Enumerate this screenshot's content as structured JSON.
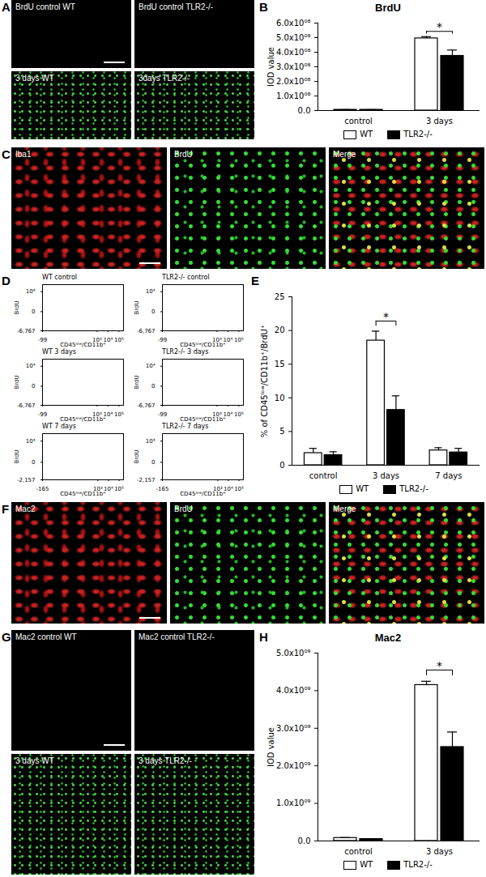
{
  "chart_data": [
    {
      "panel": "B",
      "type": "bar",
      "title": "BrdU",
      "y_label": "IOD value",
      "categories": [
        "control",
        "3 days"
      ],
      "series": [
        {
          "name": "WT",
          "color": "#ffffff",
          "values": [
            5000000,
            495000000
          ],
          "errors": [
            1000000,
            12000000
          ]
        },
        {
          "name": "TLR2-/-",
          "color": "#000000",
          "values": [
            5000000,
            375000000
          ],
          "errors": [
            1000000,
            40000000
          ]
        }
      ],
      "ylim": [
        0,
        600000000
      ],
      "yticks": [
        {
          "value": 0,
          "label": "0.0"
        },
        {
          "value": 100000000,
          "label": "1.0x10⁰⁸"
        },
        {
          "value": 200000000,
          "label": "2.0x10⁰⁸"
        },
        {
          "value": 300000000,
          "label": "3.0x10⁰⁸"
        },
        {
          "value": 400000000,
          "label": "4.0x10⁰⁸"
        },
        {
          "value": 500000000,
          "label": "5.0x10⁰⁸"
        },
        {
          "value": 600000000,
          "label": "6.0x10⁰⁸"
        }
      ],
      "significance": [
        {
          "category": "3 days",
          "label": "*"
        }
      ],
      "legend": "bottom"
    },
    {
      "panel": "E",
      "type": "bar",
      "y_label": "% of CD45ˡᵒʷ/CD11b⁺/BrdU⁺",
      "categories": [
        "control",
        "3 days",
        "7 days"
      ],
      "series": [
        {
          "name": "WT",
          "color": "#ffffff",
          "values": [
            1.8,
            18.5,
            2.2
          ],
          "errors": [
            0.7,
            1.4,
            0.4
          ]
        },
        {
          "name": "TLR2-/-",
          "color": "#000000",
          "values": [
            1.5,
            8.2,
            1.9
          ],
          "errors": [
            0.5,
            2.1,
            0.6
          ]
        }
      ],
      "ylim": [
        0,
        25
      ],
      "yticks": [
        0,
        5,
        10,
        15,
        20,
        25
      ],
      "significance": [
        {
          "category": "3 days",
          "label": "*"
        }
      ],
      "legend": "bottom"
    },
    {
      "panel": "H",
      "type": "bar",
      "title": "Mac2",
      "y_label": "IOD value",
      "categories": [
        "control",
        "3 days"
      ],
      "series": [
        {
          "name": "WT",
          "color": "#ffffff",
          "values": [
            80000000,
            4150000000
          ],
          "errors": [
            10000000,
            100000000
          ]
        },
        {
          "name": "TLR2-/-",
          "color": "#000000",
          "values": [
            50000000,
            2500000000
          ],
          "errors": [
            5000000,
            400000000
          ]
        }
      ],
      "ylim": [
        0,
        5000000000
      ],
      "yticks": [
        {
          "value": 0,
          "label": "0.0"
        },
        {
          "value": 1000000000,
          "label": "1.0x10⁰⁹"
        },
        {
          "value": 2000000000,
          "label": "2.0x10⁰⁹"
        },
        {
          "value": 3000000000,
          "label": "3.0x10⁰⁹"
        },
        {
          "value": 4000000000,
          "label": "4.0x10⁰⁹"
        },
        {
          "value": 5000000000,
          "label": "5.0x10⁰⁹"
        }
      ],
      "significance": [
        {
          "category": "3 days",
          "label": "*"
        }
      ],
      "legend": "bottom"
    }
  ],
  "image_panels": [
    {
      "panel": "A",
      "labels": [
        "BrdU control WT",
        "BrdU control TLR2-/-",
        "3 days WT",
        "3days TLR2-/-"
      ]
    },
    {
      "panel": "C",
      "labels": [
        "Iba1",
        "BrdU",
        "Merge"
      ]
    },
    {
      "panel": "F",
      "labels": [
        "Mac2",
        "BrdU",
        "Merge"
      ]
    },
    {
      "panel": "G",
      "labels": [
        "Mac2 control WT",
        "Mac2 control TLR2-/-",
        "3 days WT",
        "3 days TLR2-/-"
      ]
    }
  ],
  "flow_panel": {
    "panel": "D",
    "x_label": "CD45ˡᵒʷ/CD11b⁺",
    "y_label": "BrdU",
    "plots": [
      {
        "title": "WT control",
        "xlim": [
          -99,
          262144
        ],
        "ylim": [
          -6767,
          262144
        ],
        "xticks": [
          -99,
          {
            "value": 1000,
            "label": "10³"
          },
          {
            "value": 10000,
            "label": "10⁴"
          },
          {
            "value": 100000,
            "label": "10⁵"
          }
        ],
        "yticks": [
          {
            "value": -6767,
            "label": "-6,767"
          },
          0,
          {
            "value": 10000,
            "label": "10⁴"
          }
        ]
      },
      {
        "title": "TLR2-/- control",
        "xlim": [
          -99,
          262144
        ],
        "ylim": [
          -6767,
          262144
        ],
        "xticks": [
          -99,
          {
            "value": 1000,
            "label": "10³"
          },
          {
            "value": 10000,
            "label": "10⁴"
          },
          {
            "value": 100000,
            "label": "10⁵"
          }
        ],
        "yticks": [
          {
            "value": -6767,
            "label": "-6,767"
          },
          0,
          {
            "value": 10000,
            "label": "10⁴"
          }
        ]
      },
      {
        "title": "WT 3 days",
        "xlim": [
          -99,
          262144
        ],
        "ylim": [
          -6767,
          262144
        ],
        "xticks": [
          -99,
          {
            "value": 1000,
            "label": "10³"
          },
          {
            "value": 10000,
            "label": "10⁴"
          },
          {
            "value": 100000,
            "label": "10⁵"
          }
        ],
        "yticks": [
          {
            "value": -6767,
            "label": "-6,767"
          },
          0,
          {
            "value": 10000,
            "label": "10⁴"
          }
        ]
      },
      {
        "title": "TLR2-/- 3 days",
        "xlim": [
          -99,
          262144
        ],
        "ylim": [
          -6767,
          262144
        ],
        "xticks": [
          -99,
          {
            "value": 1000,
            "label": "10³"
          },
          {
            "value": 10000,
            "label": "10⁴"
          },
          {
            "value": 100000,
            "label": "10⁵"
          }
        ],
        "yticks": [
          {
            "value": -6767,
            "label": "-6,767"
          },
          0,
          {
            "value": 10000,
            "label": "10⁴"
          }
        ]
      },
      {
        "title": "WT 7 days",
        "xlim": [
          -165,
          262144
        ],
        "ylim": [
          -2157,
          262144
        ],
        "xticks": [
          -165,
          {
            "value": 1000,
            "label": "10³"
          },
          {
            "value": 10000,
            "label": "10⁴"
          },
          {
            "value": 100000,
            "label": "10⁵"
          }
        ],
        "yticks": [
          {
            "value": -2157,
            "label": "-2,157"
          },
          0,
          {
            "value": 10000,
            "label": "10⁴"
          }
        ]
      },
      {
        "title": "TLR2-/- 7 days",
        "xlim": [
          -165,
          262144
        ],
        "ylim": [
          -2157,
          262144
        ],
        "xticks": [
          -165,
          {
            "value": 1000,
            "label": "10³"
          },
          {
            "value": 10000,
            "label": "10⁴"
          },
          {
            "value": 100000,
            "label": "10⁵"
          }
        ],
        "yticks": [
          {
            "value": -2157,
            "label": "-2,157"
          },
          0,
          {
            "value": 10000,
            "label": "10⁴"
          }
        ]
      }
    ]
  }
}
